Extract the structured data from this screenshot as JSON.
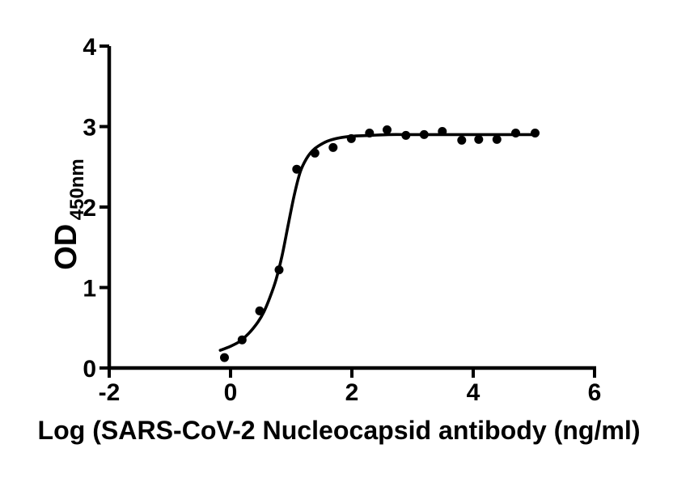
{
  "figure": {
    "background": "#ffffff",
    "ink_color": "#000000"
  },
  "chart_data": {
    "type": "scatter",
    "title": "",
    "xlabel": "Log (SARS-CoV-2 Nucleocapsid antibody (ng/ml)",
    "ylabel_main": "OD",
    "ylabel_sub": "450nm",
    "xlim": [
      -2,
      6
    ],
    "ylim": [
      0,
      4
    ],
    "x_ticks": [
      -2,
      0,
      2,
      4,
      6
    ],
    "y_ticks": [
      0,
      1,
      2,
      3,
      4
    ],
    "grid": false,
    "legend_position": "none",
    "marker_color": "#000000",
    "curve_color": "#000000",
    "marker_radius_px": 5.5,
    "points": [
      [
        -0.1,
        0.13
      ],
      [
        0.19,
        0.35
      ],
      [
        0.48,
        0.71
      ],
      [
        0.8,
        1.22
      ],
      [
        1.09,
        2.47
      ],
      [
        1.39,
        2.67
      ],
      [
        1.69,
        2.74
      ],
      [
        1.99,
        2.85
      ],
      [
        2.29,
        2.92
      ],
      [
        2.58,
        2.96
      ],
      [
        2.89,
        2.89
      ],
      [
        3.19,
        2.9
      ],
      [
        3.49,
        2.94
      ],
      [
        3.81,
        2.83
      ],
      [
        4.09,
        2.84
      ],
      [
        4.39,
        2.84
      ],
      [
        4.7,
        2.92
      ],
      [
        5.02,
        2.92
      ]
    ],
    "fit_curve": {
      "model": "sigmoidal dose-response",
      "bottom": 0.22,
      "top": 2.89,
      "samples": [
        [
          -0.17,
          0.22
        ],
        [
          0.0,
          0.27
        ],
        [
          0.15,
          0.33
        ],
        [
          0.3,
          0.43
        ],
        [
          0.45,
          0.57
        ],
        [
          0.55,
          0.7
        ],
        [
          0.65,
          0.88
        ],
        [
          0.75,
          1.1
        ],
        [
          0.85,
          1.4
        ],
        [
          0.95,
          1.78
        ],
        [
          1.05,
          2.15
        ],
        [
          1.15,
          2.44
        ],
        [
          1.25,
          2.6
        ],
        [
          1.35,
          2.7
        ],
        [
          1.45,
          2.76
        ],
        [
          1.6,
          2.82
        ],
        [
          1.8,
          2.86
        ],
        [
          2.0,
          2.88
        ],
        [
          2.3,
          2.89
        ],
        [
          2.6,
          2.9
        ],
        [
          3.0,
          2.9
        ],
        [
          3.5,
          2.9
        ],
        [
          4.0,
          2.9
        ],
        [
          4.5,
          2.9
        ],
        [
          5.02,
          2.9
        ]
      ]
    }
  }
}
